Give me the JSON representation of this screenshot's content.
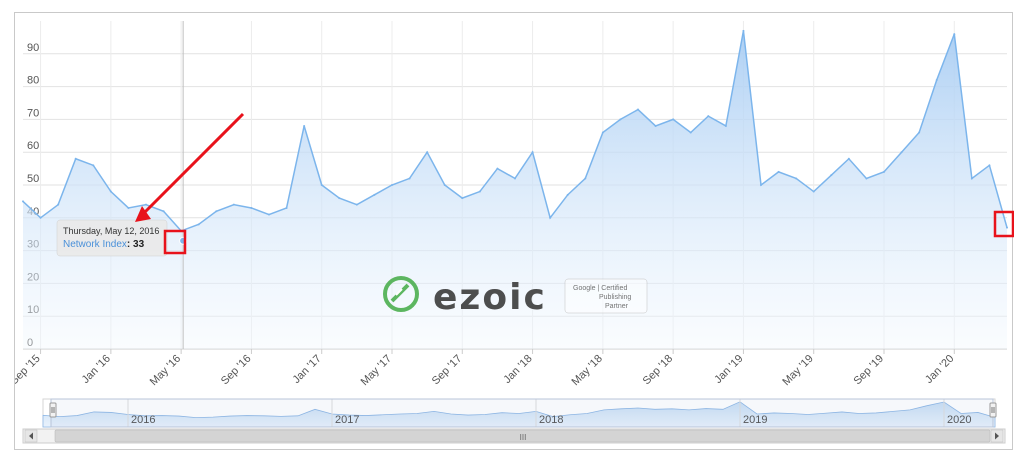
{
  "chart_data": {
    "type": "area",
    "series": [
      {
        "name": "Network Index",
        "x": [
          "2015-08",
          "2015-09",
          "2015-10",
          "2015-11",
          "2015-12",
          "2016-01",
          "2016-02",
          "2016-03",
          "2016-04",
          "2016-05",
          "2016-06",
          "2016-07",
          "2016-08",
          "2016-09",
          "2016-10",
          "2016-11",
          "2016-12",
          "2017-01",
          "2017-02",
          "2017-03",
          "2017-04",
          "2017-05",
          "2017-06",
          "2017-07",
          "2017-08",
          "2017-09",
          "2017-10",
          "2017-11",
          "2017-12",
          "2018-01",
          "2018-02",
          "2018-03",
          "2018-04",
          "2018-05",
          "2018-06",
          "2018-07",
          "2018-08",
          "2018-09",
          "2018-10",
          "2018-11",
          "2018-12",
          "2019-01",
          "2019-02",
          "2019-03",
          "2019-04",
          "2019-05",
          "2019-06",
          "2019-07",
          "2019-08",
          "2019-09",
          "2019-10",
          "2019-11",
          "2019-12",
          "2020-01",
          "2020-02",
          "2020-03",
          "2020-04"
        ],
        "values": [
          45,
          40,
          44,
          58,
          56,
          48,
          43,
          44,
          42,
          36,
          38,
          42,
          44,
          43,
          41,
          43,
          68,
          50,
          46,
          44,
          47,
          50,
          52,
          60,
          50,
          46,
          48,
          55,
          52,
          60,
          40,
          47,
          52,
          66,
          70,
          73,
          68,
          70,
          66,
          71,
          68,
          97,
          50,
          54,
          52,
          48,
          53,
          58,
          52,
          54,
          60,
          66,
          82,
          96,
          52,
          56,
          37
        ]
      }
    ],
    "y_ticks": [
      "0",
      "10",
      "20",
      "30",
      "40",
      "50",
      "60",
      "70",
      "80",
      "90"
    ],
    "ylim": [
      0,
      100
    ],
    "x_ticks": [
      "Sep '15",
      "Jan '16",
      "May '16",
      "Sep '16",
      "Jan '17",
      "May '17",
      "Sep '17",
      "Jan '18",
      "May '18",
      "Sep '18",
      "Jan '19",
      "May '19",
      "Sep '19",
      "Jan '20"
    ],
    "x_tick_dates": [
      "2015-09",
      "2016-01",
      "2016-05",
      "2016-09",
      "2017-01",
      "2017-05",
      "2017-09",
      "2018-01",
      "2018-05",
      "2018-09",
      "2019-01",
      "2019-05",
      "2019-09",
      "2020-01"
    ],
    "grid": true,
    "tooltip": {
      "date": "Thursday, May 12, 2016",
      "series": "Network Index",
      "value": "33",
      "point_x": "2016-05",
      "point_y": 33
    },
    "navigator": {
      "labels": [
        "2016",
        "2017",
        "2018",
        "2019",
        "2020"
      ],
      "scrollbar_glyph": "III"
    },
    "colors": {
      "line": "#7cb5ec",
      "fill_top": "#a9cdf3",
      "fill_bottom": "#f2f8fe",
      "annotation": "#e8121b"
    }
  },
  "watermark": {
    "brand": "ezoic",
    "badge_lines": [
      "Google | Certified",
      "Publishing",
      "Partner"
    ]
  }
}
